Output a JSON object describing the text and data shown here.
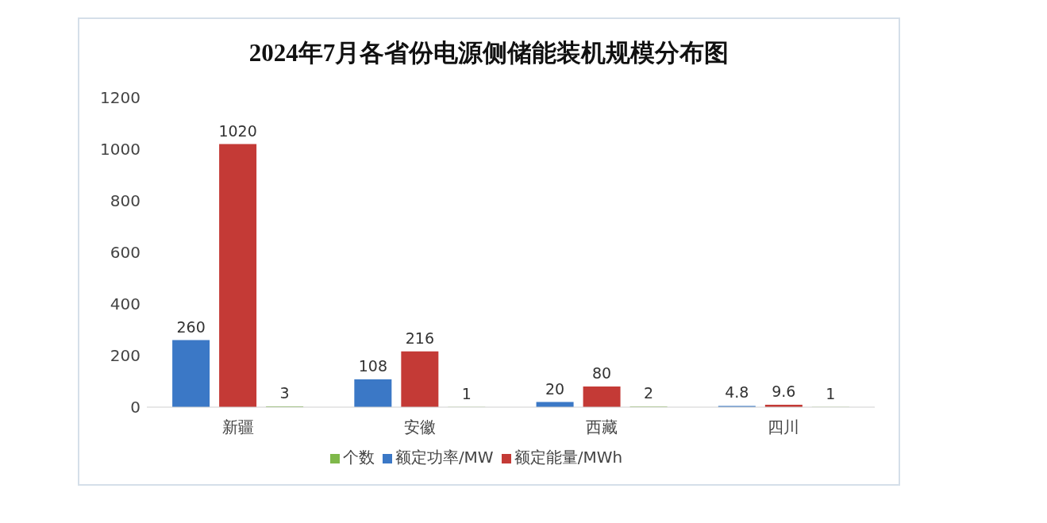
{
  "chart_data": {
    "type": "bar",
    "title": "2024年7月各省份电源侧储能装机规模分布图",
    "categories": [
      "新疆",
      "安徽",
      "西藏",
      "四川"
    ],
    "series": [
      {
        "name": "额定功率/MW",
        "color": "#3b78c6",
        "values": [
          260,
          108,
          20,
          4.8
        ]
      },
      {
        "name": "额定能量/MWh",
        "color": "#c43a36",
        "values": [
          1020,
          216,
          80,
          9.6
        ]
      },
      {
        "name": "个数",
        "color": "#7fb84a",
        "values": [
          3,
          1,
          2,
          1
        ]
      }
    ],
    "ylim": [
      0,
      1200
    ],
    "yticks": [
      0,
      200,
      400,
      600,
      800,
      1000,
      1200
    ],
    "grid": false,
    "legend": "bottom",
    "data_labels": true
  }
}
